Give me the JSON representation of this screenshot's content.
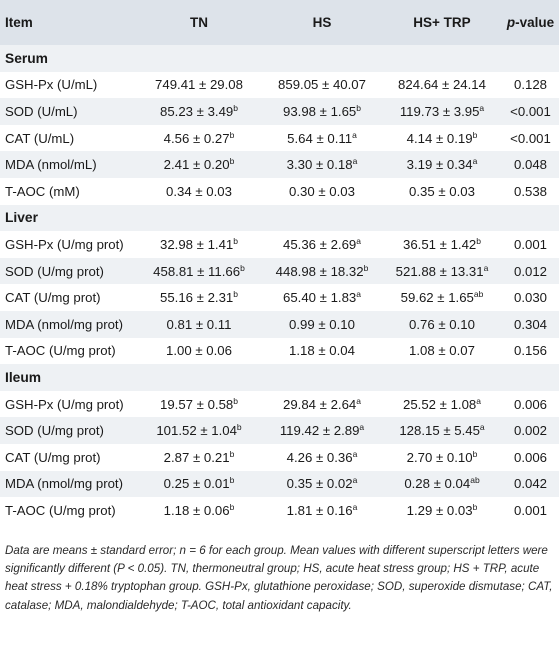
{
  "header": {
    "item": "Item",
    "tn": "TN",
    "hs": "HS",
    "hstrp": "HS+ TRP",
    "p_italic": "p",
    "p_rest": "-value"
  },
  "sections": [
    {
      "title": "Serum",
      "rows": [
        {
          "item": "GSH-Px (U/mL)",
          "tn": "749.41 ± 29.08",
          "tn_sup": "",
          "hs": "859.05 ± 40.07",
          "hs_sup": "",
          "trp": "824.64 ± 24.14",
          "trp_sup": "",
          "p": "0.128"
        },
        {
          "item": "SOD (U/mL)",
          "tn": "85.23 ± 3.49",
          "tn_sup": "b",
          "hs": "93.98 ± 1.65",
          "hs_sup": "b",
          "trp": "119.73 ± 3.95",
          "trp_sup": "a",
          "p": "<0.001"
        },
        {
          "item": "CAT (U/mL)",
          "tn": "4.56 ± 0.27",
          "tn_sup": "b",
          "hs": "5.64 ± 0.11",
          "hs_sup": "a",
          "trp": "4.14 ± 0.19",
          "trp_sup": "b",
          "p": "<0.001"
        },
        {
          "item": "MDA (nmol/mL)",
          "tn": "2.41 ± 0.20",
          "tn_sup": "b",
          "hs": "3.30 ± 0.18",
          "hs_sup": "a",
          "trp": "3.19 ± 0.34",
          "trp_sup": "a",
          "p": "0.048"
        },
        {
          "item": "T-AOC (mM)",
          "tn": "0.34 ± 0.03",
          "tn_sup": "",
          "hs": "0.30 ± 0.03",
          "hs_sup": "",
          "trp": "0.35 ± 0.03",
          "trp_sup": "",
          "p": "0.538"
        }
      ]
    },
    {
      "title": "Liver",
      "rows": [
        {
          "item": "GSH-Px (U/mg prot)",
          "tn": "32.98 ± 1.41",
          "tn_sup": "b",
          "hs": "45.36 ± 2.69",
          "hs_sup": "a",
          "trp": "36.51 ± 1.42",
          "trp_sup": "b",
          "p": "0.001"
        },
        {
          "item": "SOD (U/mg prot)",
          "tn": "458.81 ± 11.66",
          "tn_sup": "b",
          "hs": "448.98 ± 18.32",
          "hs_sup": "b",
          "trp": "521.88 ± 13.31",
          "trp_sup": "a",
          "p": "0.012"
        },
        {
          "item": "CAT (U/mg prot)",
          "tn": "55.16 ± 2.31",
          "tn_sup": "b",
          "hs": "65.40 ± 1.83",
          "hs_sup": "a",
          "trp": "59.62 ± 1.65",
          "trp_sup": "ab",
          "p": "0.030"
        },
        {
          "item": "MDA (nmol/mg prot)",
          "tn": "0.81 ± 0.11",
          "tn_sup": "",
          "hs": "0.99 ± 0.10",
          "hs_sup": "",
          "trp": "0.76 ± 0.10",
          "trp_sup": "",
          "p": "0.304"
        },
        {
          "item": "T-AOC (U/mg prot)",
          "tn": "1.00 ± 0.06",
          "tn_sup": "",
          "hs": "1.18 ± 0.04",
          "hs_sup": "",
          "trp": "1.08 ± 0.07",
          "trp_sup": "",
          "p": "0.156"
        }
      ]
    },
    {
      "title": "Ileum",
      "rows": [
        {
          "item": "GSH-Px (U/mg prot)",
          "tn": "19.57 ± 0.58",
          "tn_sup": "b",
          "hs": "29.84 ± 2.64",
          "hs_sup": "a",
          "trp": "25.52 ± 1.08",
          "trp_sup": "a",
          "p": "0.006"
        },
        {
          "item": "SOD (U/mg prot)",
          "tn": "101.52 ± 1.04",
          "tn_sup": "b",
          "hs": "119.42 ± 2.89",
          "hs_sup": "a",
          "trp": "128.15 ± 5.45",
          "trp_sup": "a",
          "p": "0.002"
        },
        {
          "item": "CAT (U/mg prot)",
          "tn": "2.87 ± 0.21",
          "tn_sup": "b",
          "hs": "4.26 ± 0.36",
          "hs_sup": "a",
          "trp": "2.70 ± 0.10",
          "trp_sup": "b",
          "p": "0.006"
        },
        {
          "item": "MDA (nmol/mg prot)",
          "tn": "0.25 ± 0.01",
          "tn_sup": "b",
          "hs": "0.35 ± 0.02",
          "hs_sup": "a",
          "trp": "0.28 ± 0.04",
          "trp_sup": "ab",
          "p": "0.042"
        },
        {
          "item": "T-AOC (U/mg prot)",
          "tn": "1.18 ± 0.06",
          "tn_sup": "b",
          "hs": "1.81 ± 0.16",
          "hs_sup": "a",
          "trp": "1.29 ± 0.03",
          "trp_sup": "b",
          "p": "0.001"
        }
      ]
    }
  ],
  "footnote": "Data are means ± standard error; n = 6 for each group. Mean values with different superscript letters were significantly different (P < 0.05). TN, thermoneutral group; HS, acute heat stress group; HS + TRP, acute heat stress + 0.18% tryptophan group. GSH-Px, glutathione peroxidase; SOD, superoxide dismutase; CAT, catalase; MDA, malondialdehyde; T-AOC, total antioxidant capacity.",
  "colors": {
    "header_bg": "#dde3ea",
    "stripe_bg": "#eef1f4"
  }
}
